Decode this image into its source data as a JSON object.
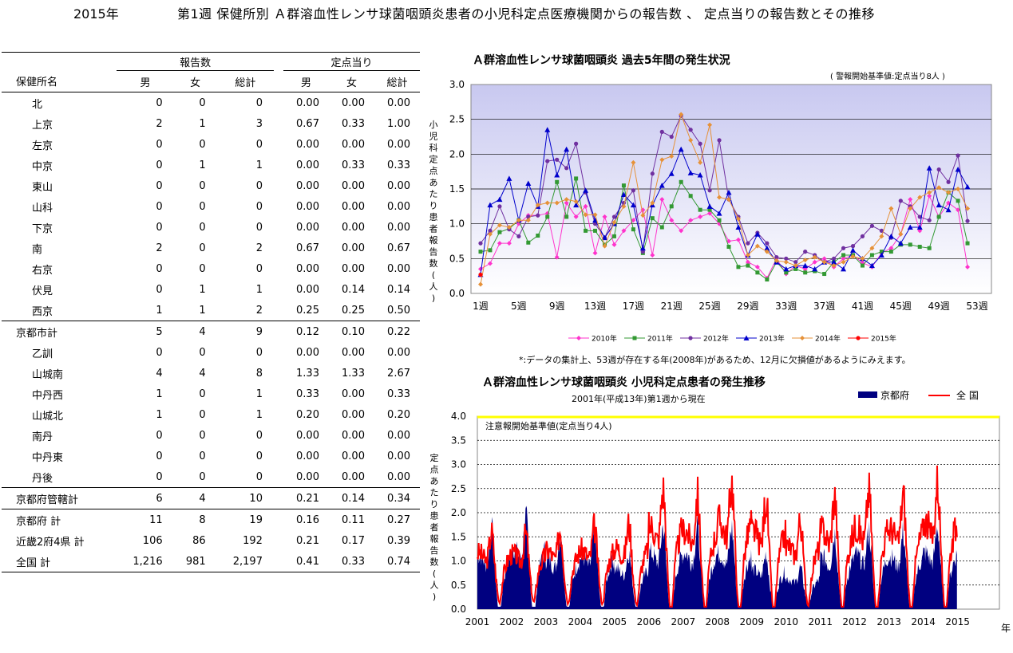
{
  "header": {
    "year": "2015年",
    "title": "第1週 保健所別 Ａ群溶血性レンサ球菌咽頭炎患者の小児科定点医療機関からの報告数 、 定点当りの報告数とその推移"
  },
  "table": {
    "group_reports": "報告数",
    "group_per": "定点当り",
    "col_name": "保健所名",
    "cols": [
      "男",
      "女",
      "総計",
      "男",
      "女",
      "総計"
    ],
    "rows": [
      {
        "name": "北",
        "v": [
          "0",
          "0",
          "0",
          "0.00",
          "0.00",
          "0.00"
        ]
      },
      {
        "name": "上京",
        "v": [
          "2",
          "1",
          "3",
          "0.67",
          "0.33",
          "1.00"
        ]
      },
      {
        "name": "左京",
        "v": [
          "0",
          "0",
          "0",
          "0.00",
          "0.00",
          "0.00"
        ]
      },
      {
        "name": "中京",
        "v": [
          "0",
          "1",
          "1",
          "0.00",
          "0.33",
          "0.33"
        ]
      },
      {
        "name": "東山",
        "v": [
          "0",
          "0",
          "0",
          "0.00",
          "0.00",
          "0.00"
        ]
      },
      {
        "name": "山科",
        "v": [
          "0",
          "0",
          "0",
          "0.00",
          "0.00",
          "0.00"
        ]
      },
      {
        "name": "下京",
        "v": [
          "0",
          "0",
          "0",
          "0.00",
          "0.00",
          "0.00"
        ]
      },
      {
        "name": "南",
        "v": [
          "2",
          "0",
          "2",
          "0.67",
          "0.00",
          "0.67"
        ]
      },
      {
        "name": "右京",
        "v": [
          "0",
          "0",
          "0",
          "0.00",
          "0.00",
          "0.00"
        ]
      },
      {
        "name": "伏見",
        "v": [
          "0",
          "1",
          "1",
          "0.00",
          "0.14",
          "0.14"
        ]
      },
      {
        "name": "西京",
        "v": [
          "1",
          "1",
          "2",
          "0.25",
          "0.25",
          "0.50"
        ]
      },
      {
        "name": "京都市計",
        "v": [
          "5",
          "4",
          "9",
          "0.12",
          "0.10",
          "0.22"
        ]
      },
      {
        "name": "乙訓",
        "v": [
          "0",
          "0",
          "0",
          "0.00",
          "0.00",
          "0.00"
        ]
      },
      {
        "name": "山城南",
        "v": [
          "4",
          "4",
          "8",
          "1.33",
          "1.33",
          "2.67"
        ]
      },
      {
        "name": "中丹西",
        "v": [
          "1",
          "0",
          "1",
          "0.33",
          "0.00",
          "0.33"
        ]
      },
      {
        "name": "山城北",
        "v": [
          "1",
          "0",
          "1",
          "0.20",
          "0.00",
          "0.20"
        ]
      },
      {
        "name": "南丹",
        "v": [
          "0",
          "0",
          "0",
          "0.00",
          "0.00",
          "0.00"
        ]
      },
      {
        "name": "中丹東",
        "v": [
          "0",
          "0",
          "0",
          "0.00",
          "0.00",
          "0.00"
        ]
      },
      {
        "name": "丹後",
        "v": [
          "0",
          "0",
          "0",
          "0.00",
          "0.00",
          "0.00"
        ]
      },
      {
        "name": "京都府管轄計",
        "v": [
          "6",
          "4",
          "10",
          "0.21",
          "0.14",
          "0.34"
        ]
      },
      {
        "name": "京都府 計",
        "v": [
          "11",
          "8",
          "19",
          "0.16",
          "0.11",
          "0.27"
        ]
      },
      {
        "name": "近畿2府4県 計",
        "v": [
          "106",
          "86",
          "192",
          "0.21",
          "0.17",
          "0.39"
        ]
      },
      {
        "name": "全国 計",
        "v": [
          "1,216",
          "981",
          "2,197",
          "0.41",
          "0.33",
          "0.74"
        ]
      }
    ]
  },
  "chart_data": [
    {
      "type": "line",
      "title": "Ａ群溶血性レンサ球菌咽頭炎 過去5年間の発生状況",
      "note": "( 警報開始基準値:定点当り8人 )",
      "footnote": "*:データの集計上、53週が存在する年(2008年)があるため、12月に欠損値があるようにみえます。",
      "ylabel": "小児科定点あたり患者報告数(人)",
      "ylim": [
        0,
        3.0
      ],
      "yticks": [
        "0.0",
        "0.5",
        "1.0",
        "1.5",
        "2.0",
        "2.5",
        "3.0"
      ],
      "xticks": [
        "1週",
        "5週",
        "9週",
        "13週",
        "17週",
        "21週",
        "25週",
        "29週",
        "33週",
        "37週",
        "41週",
        "45週",
        "49週",
        "53週"
      ],
      "grid": true,
      "legend_position": "bottom",
      "series": [
        {
          "name": "2010年",
          "color": "#ff33cc",
          "marker": "diamond",
          "values": [
            0.35,
            0.43,
            0.72,
            0.72,
            1.0,
            1.12,
            1.12,
            1.15,
            0.52,
            1.3,
            1.1,
            1.25,
            0.58,
            1.1,
            0.7,
            0.9,
            1.05,
            1.2,
            0.55,
            1.35,
            1.05,
            0.9,
            1.05,
            1.1,
            1.15,
            1.0,
            0.75,
            0.77,
            0.45,
            0.38,
            0.22,
            0.5,
            0.28,
            0.4,
            0.35,
            0.45,
            0.5,
            0.38,
            0.5,
            0.55,
            0.44,
            0.38,
            0.58,
            0.65,
            0.85,
            1.35,
            0.9,
            1.4,
            1.1,
            1.3,
            1.2,
            0.38
          ]
        },
        {
          "name": "2011年",
          "color": "#339933",
          "marker": "square",
          "values": [
            0.6,
            0.62,
            0.88,
            0.93,
            1.05,
            0.73,
            0.83,
            1.1,
            1.6,
            1.1,
            1.65,
            0.9,
            0.9,
            0.7,
            0.82,
            1.55,
            0.92,
            0.58,
            1.08,
            0.95,
            1.25,
            1.6,
            1.4,
            1.2,
            1.2,
            1.05,
            0.67,
            0.38,
            0.4,
            0.3,
            0.2,
            0.45,
            0.3,
            0.35,
            0.3,
            0.32,
            0.28,
            0.45,
            0.55,
            0.55,
            0.4,
            0.55,
            0.6,
            0.6,
            0.7,
            0.7,
            0.67,
            0.65,
            1.1,
            1.45,
            1.33,
            0.72
          ]
        },
        {
          "name": "2012年",
          "color": "#7030a0",
          "marker": "circle",
          "values": [
            0.72,
            0.9,
            1.25,
            0.92,
            0.82,
            1.1,
            1.12,
            1.9,
            1.92,
            1.8,
            2.15,
            1.45,
            1.0,
            0.8,
            1.1,
            1.3,
            1.48,
            0.6,
            1.72,
            2.32,
            2.25,
            2.55,
            2.35,
            2.15,
            1.48,
            2.2,
            1.35,
            1.1,
            0.72,
            0.87,
            0.72,
            0.52,
            0.5,
            0.45,
            0.6,
            0.55,
            0.45,
            0.5,
            0.65,
            0.68,
            0.82,
            0.97,
            0.9,
            0.8,
            1.33,
            1.25,
            1.1,
            1.05,
            1.78,
            1.6,
            1.98,
            1.04
          ]
        },
        {
          "name": "2013年",
          "color": "#0000cc",
          "marker": "triangle",
          "values": [
            0.27,
            1.27,
            1.35,
            1.65,
            1.05,
            1.58,
            1.25,
            2.35,
            1.7,
            2.07,
            1.27,
            1.48,
            1.05,
            0.8,
            1.0,
            1.42,
            1.27,
            0.65,
            1.27,
            1.55,
            1.72,
            2.07,
            1.73,
            1.7,
            1.25,
            1.15,
            1.45,
            0.95,
            0.55,
            0.85,
            0.65,
            0.45,
            0.35,
            0.4,
            0.4,
            0.35,
            0.45,
            0.45,
            0.35,
            0.62,
            0.5,
            0.4,
            0.55,
            0.82,
            0.72,
            0.95,
            0.95,
            1.8,
            1.27,
            1.2,
            1.78,
            1.53
          ]
        },
        {
          "name": "2014年",
          "color": "#e69138",
          "marker": "diamond",
          "values": [
            0.13,
            0.85,
            0.98,
            0.95,
            1.05,
            1.05,
            1.27,
            1.3,
            1.3,
            1.35,
            1.32,
            1.13,
            1.13,
            0.68,
            1.02,
            1.25,
            1.88,
            1.12,
            1.3,
            1.92,
            1.97,
            2.57,
            2.2,
            1.88,
            2.42,
            1.38,
            1.35,
            1.07,
            0.55,
            0.68,
            0.6,
            0.47,
            0.45,
            0.4,
            0.48,
            0.52,
            0.45,
            0.4,
            0.45,
            0.53,
            0.5,
            0.65,
            0.82,
            1.22,
            0.85,
            1.22,
            1.38,
            1.45,
            1.52,
            1.45,
            1.5,
            1.22
          ]
        },
        {
          "name": "2015年",
          "color": "#ff0000",
          "marker": "circle",
          "values": [
            0.27
          ]
        }
      ]
    },
    {
      "type": "area",
      "title": "Ａ群溶血性レンサ球菌咽頭炎 小児科定点患者の発生推移",
      "subtitle": "2001年(平成13年)第1週から現在",
      "ylabel": "定点あたり患者報告数(人)",
      "ylim": [
        0,
        4.0
      ],
      "yticks": [
        "0.0",
        "0.5",
        "1.0",
        "1.5",
        "2.0",
        "2.5",
        "3.0",
        "3.5",
        "4.0"
      ],
      "xticks": [
        "2001",
        "2002",
        "2003",
        "2004",
        "2005",
        "2006",
        "2007",
        "2008",
        "2009",
        "2010",
        "2011",
        "2012",
        "2013",
        "2014",
        "2015"
      ],
      "xunit": "年",
      "annotation": "注意報開始基準値(定点当り4人)",
      "series_names": [
        "京都府",
        "全 国"
      ],
      "series_colors": [
        "#000080",
        "#ff0000"
      ],
      "kyoto_peaks": [
        1.95,
        2.3,
        1.75,
        1.85,
        1.3,
        2.05,
        2.05,
        2.0,
        1.25,
        0.85,
        1.85,
        1.95,
        1.85,
        2.05
      ],
      "national_peaks": [
        1.6,
        1.55,
        1.7,
        1.75,
        1.85,
        2.85,
        2.65,
        3.1,
        2.6,
        1.95,
        2.65,
        2.8,
        2.7,
        3.05
      ]
    }
  ]
}
